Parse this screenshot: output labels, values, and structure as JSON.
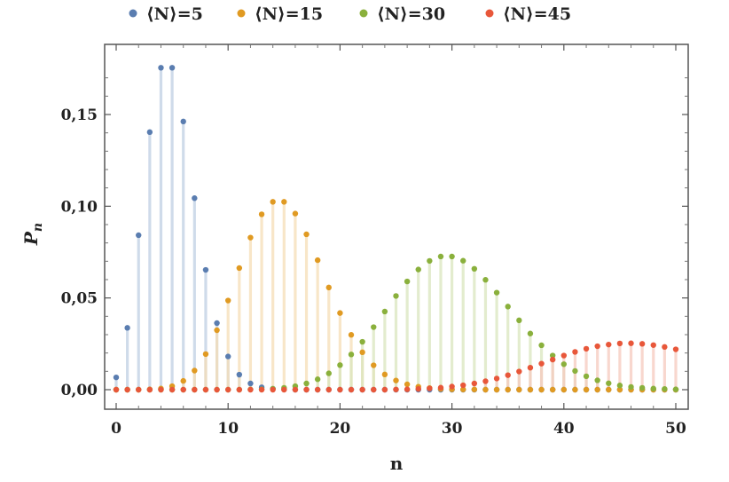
{
  "chart_data": {
    "type": "scatter",
    "style": "stem",
    "title": "",
    "xlabel": "n",
    "ylabel": "P_n",
    "ylabel_main": "P",
    "ylabel_sub": "n",
    "xlim": [
      0,
      50
    ],
    "ylim": [
      0,
      0.175
    ],
    "x_ticks": [
      0,
      10,
      20,
      30,
      40,
      50
    ],
    "x_tick_labels": [
      "0",
      "10",
      "20",
      "30",
      "40",
      "50"
    ],
    "y_ticks": [
      0,
      0.05,
      0.1,
      0.15
    ],
    "y_tick_labels": [
      "0,00",
      "0,05",
      "0,10",
      "0,15"
    ],
    "grid": false,
    "legend_position": "top",
    "series": [
      {
        "name": "⟨N⟩=5",
        "mean": 5,
        "color": "#5a7db0",
        "stem_color": "#bfcfe3",
        "x": [
          0,
          1,
          2,
          3,
          4,
          5,
          6,
          7,
          8,
          9,
          10,
          11,
          12,
          13,
          14,
          15,
          16,
          17,
          18,
          19,
          20,
          21,
          22,
          23,
          24,
          25,
          26,
          27,
          28,
          29,
          30,
          31,
          32,
          33,
          34,
          35,
          36,
          37,
          38,
          39,
          40,
          41,
          42,
          43,
          44,
          45,
          46,
          47,
          48,
          49,
          50
        ],
        "values": [
          0.0067,
          0.0337,
          0.0842,
          0.1404,
          0.1755,
          0.1755,
          0.1462,
          0.1044,
          0.0653,
          0.0363,
          0.0181,
          0.0082,
          0.0034,
          0.0013,
          0.0005,
          0.0002,
          0.0,
          0.0,
          0.0,
          0.0,
          0.0,
          0.0,
          0.0,
          0.0,
          0.0,
          0.0,
          0.0,
          0.0,
          0.0,
          0.0,
          0.0,
          0.0,
          0.0,
          0.0,
          0.0,
          0.0,
          0.0,
          0.0,
          0.0,
          0.0,
          0.0,
          0.0,
          0.0,
          0.0,
          0.0,
          0.0,
          0.0,
          0.0,
          0.0,
          0.0,
          0.0
        ]
      },
      {
        "name": "⟨N⟩=15",
        "mean": 15,
        "color": "#e09a22",
        "stem_color": "#f5ddb6",
        "x": [
          0,
          1,
          2,
          3,
          4,
          5,
          6,
          7,
          8,
          9,
          10,
          11,
          12,
          13,
          14,
          15,
          16,
          17,
          18,
          19,
          20,
          21,
          22,
          23,
          24,
          25,
          26,
          27,
          28,
          29,
          30,
          31,
          32,
          33,
          34,
          35,
          36,
          37,
          38,
          39,
          40,
          41,
          42,
          43,
          44,
          45,
          46,
          47,
          48,
          49,
          50
        ],
        "values": [
          0.0,
          0.0,
          0.0,
          0.0002,
          0.0006,
          0.0019,
          0.0048,
          0.0104,
          0.0194,
          0.0324,
          0.0486,
          0.0663,
          0.0829,
          0.0956,
          0.1024,
          0.1024,
          0.096,
          0.0847,
          0.0706,
          0.0557,
          0.0418,
          0.0299,
          0.0204,
          0.0133,
          0.0083,
          0.005,
          0.0029,
          0.0016,
          0.0009,
          0.0004,
          0.0002,
          0.0001,
          0.0001,
          0.0,
          0.0,
          0.0,
          0.0,
          0.0,
          0.0,
          0.0,
          0.0,
          0.0,
          0.0,
          0.0,
          0.0,
          0.0,
          0.0,
          0.0,
          0.0,
          0.0,
          0.0
        ]
      },
      {
        "name": "⟨N⟩=30",
        "mean": 30,
        "color": "#8ab03c",
        "stem_color": "#d9e6be",
        "x": [
          0,
          1,
          2,
          3,
          4,
          5,
          6,
          7,
          8,
          9,
          10,
          11,
          12,
          13,
          14,
          15,
          16,
          17,
          18,
          19,
          20,
          21,
          22,
          23,
          24,
          25,
          26,
          27,
          28,
          29,
          30,
          31,
          32,
          33,
          34,
          35,
          36,
          37,
          38,
          39,
          40,
          41,
          42,
          43,
          44,
          45,
          46,
          47,
          48,
          49,
          50
        ],
        "values": [
          0.0,
          0.0,
          0.0,
          0.0,
          0.0,
          0.0,
          0.0,
          0.0,
          0.0,
          0.0,
          0.0,
          0.0,
          0.0001,
          0.0002,
          0.0005,
          0.001,
          0.0019,
          0.0034,
          0.0057,
          0.0089,
          0.0134,
          0.0192,
          0.0261,
          0.0341,
          0.0426,
          0.0511,
          0.059,
          0.0655,
          0.0702,
          0.0726,
          0.0726,
          0.0703,
          0.0659,
          0.0599,
          0.0529,
          0.0453,
          0.0378,
          0.0306,
          0.0242,
          0.0186,
          0.0139,
          0.0102,
          0.0073,
          0.0051,
          0.0035,
          0.0023,
          0.0015,
          0.001,
          0.0006,
          0.0004,
          0.0002
        ]
      },
      {
        "name": "⟨N⟩=45",
        "mean": 45,
        "color": "#e8573a",
        "stem_color": "#f6c9bd",
        "x": [
          0,
          1,
          2,
          3,
          4,
          5,
          6,
          7,
          8,
          9,
          10,
          11,
          12,
          13,
          14,
          15,
          16,
          17,
          18,
          19,
          20,
          21,
          22,
          23,
          24,
          25,
          26,
          27,
          28,
          29,
          30,
          31,
          32,
          33,
          34,
          35,
          36,
          37,
          38,
          39,
          40,
          41,
          42,
          43,
          44,
          45,
          46,
          47,
          48,
          49,
          50
        ],
        "values": [
          0.0,
          0.0,
          0.0,
          0.0,
          0.0,
          0.0,
          0.0,
          0.0,
          0.0,
          0.0,
          0.0,
          0.0,
          0.0,
          0.0,
          0.0,
          0.0,
          0.0,
          0.0,
          0.0,
          0.0,
          0.0,
          0.0,
          0.0,
          0.0,
          0.0,
          0.0001,
          0.0002,
          0.0004,
          0.0007,
          0.0011,
          0.0017,
          0.0024,
          0.0034,
          0.0046,
          0.0061,
          0.0079,
          0.0099,
          0.012,
          0.0142,
          0.0164,
          0.0186,
          0.0206,
          0.0223,
          0.0237,
          0.0246,
          0.0252,
          0.0253,
          0.025,
          0.0243,
          0.0233,
          0.022
        ]
      }
    ]
  }
}
